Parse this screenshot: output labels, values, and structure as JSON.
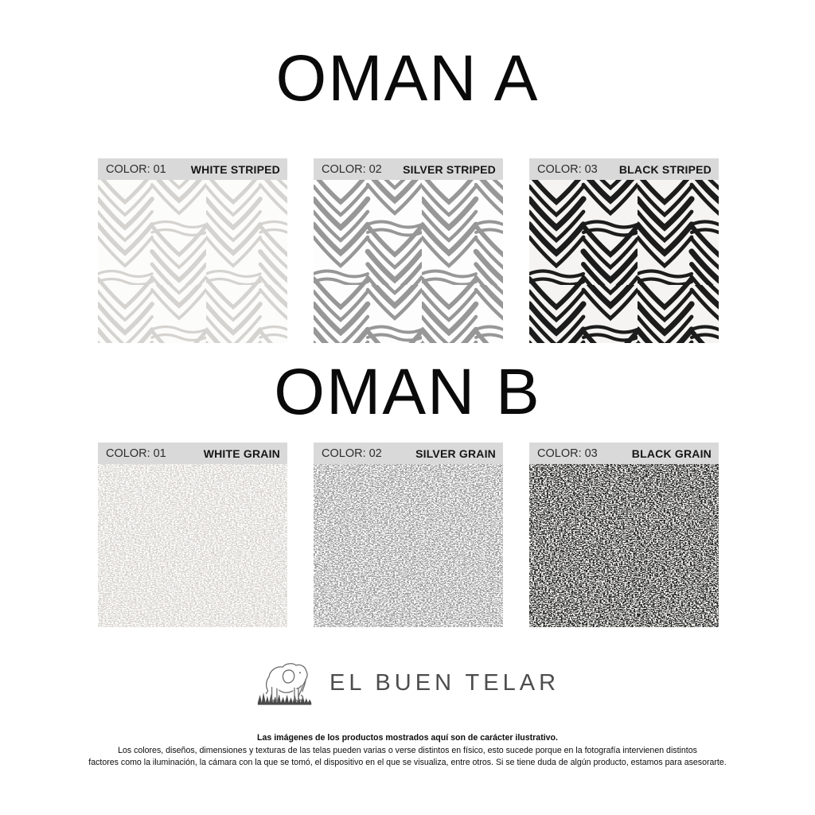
{
  "sections": [
    {
      "title": "OMAN A",
      "swatches": [
        {
          "color_label": "COLOR: 01",
          "name": "WHITE STRIPED",
          "pattern": "striped",
          "fg": "#d5d3cf",
          "bg": "#fcfcfb",
          "stroke_scale": 0.95
        },
        {
          "color_label": "COLOR: 02",
          "name": "SILVER STRIPED",
          "pattern": "striped",
          "fg": "#979797",
          "bg": "#fdfdfd",
          "stroke_scale": 1.1
        },
        {
          "color_label": "COLOR: 03",
          "name": "BLACK STRIPED",
          "pattern": "striped",
          "fg": "#1c1c1c",
          "bg": "#f5f4f2",
          "stroke_scale": 1.2
        }
      ]
    },
    {
      "title": "OMAN B",
      "swatches": [
        {
          "color_label": "COLOR: 01",
          "name": "WHITE GRAIN",
          "pattern": "grain",
          "fg": "#d7d4ce",
          "bg": "#fdfdfc"
        },
        {
          "color_label": "COLOR: 02",
          "name": "SILVER GRAIN",
          "pattern": "grain",
          "fg": "#9d9d9d",
          "bg": "#fcfcfc"
        },
        {
          "color_label": "COLOR: 03",
          "name": "BLACK GRAIN",
          "pattern": "grain",
          "fg": "#262626",
          "bg": "#f2f1ee"
        }
      ]
    }
  ],
  "brand": {
    "name": "EL BUEN TELAR",
    "logo_icon": "elephant-icon"
  },
  "disclaimer": {
    "bold_line": "Las imágenes de los productos mostrados aquí son de carácter ilustrativo.",
    "line2": "Los colores, diseños, dimensiones y texturas de las telas pueden varias o verse distintos en físico, esto sucede porque en la fotografía intervienen distintos",
    "line3": "factores como la iluminación, la cámara con la que se tomó, el dispositivo en el que se visualiza, entre otros. Si se tiene duda de algún producto, estamos para asesorarte."
  },
  "theme": {
    "header_bar_color": "#d9d9d9",
    "title_color": "#0a0a0a",
    "brand_text_color": "#4d4d4d",
    "disclaimer_text_color": "#0d0d0d"
  }
}
